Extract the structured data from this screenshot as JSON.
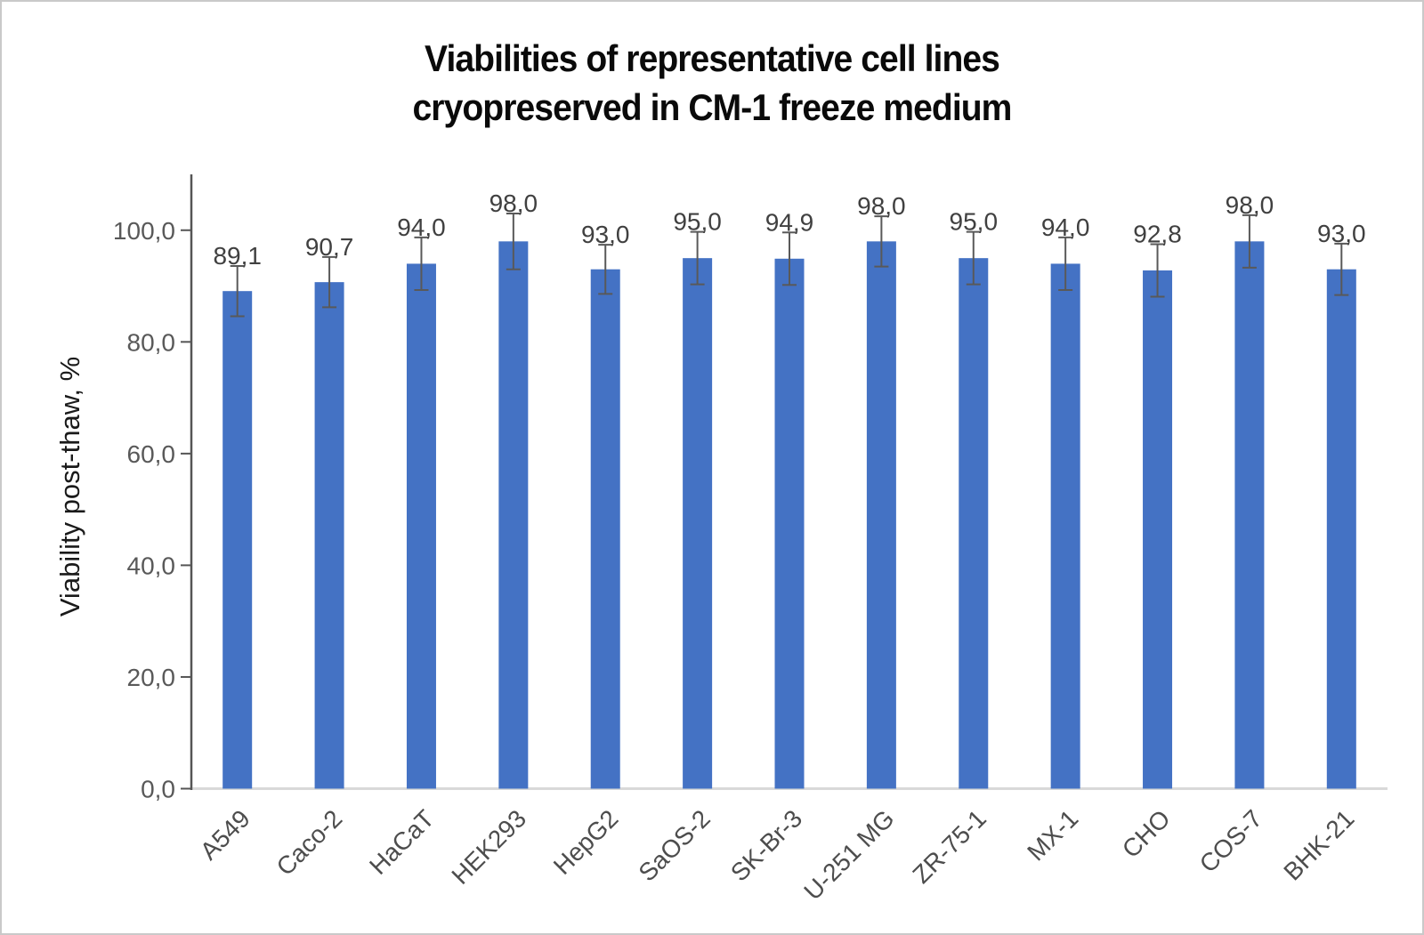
{
  "title": {
    "line1": "Viabilities of representative cell lines",
    "line2": "cryopreserved in CM-1 freeze medium"
  },
  "y_axis": {
    "title": "Viability post-thaw, %",
    "tick_labels": [
      "0,0",
      "20,0",
      "40,0",
      "60,0",
      "80,0",
      "100,0"
    ]
  },
  "chart_data": {
    "type": "bar",
    "title": "Viabilities of representative cell lines cryopreserved in CM-1 freeze medium",
    "categories": [
      "A549",
      "Caco-2",
      "HaCaT",
      "HEK293",
      "HepG2",
      "SaOS-2",
      "SK-Br-3",
      "U-251 MG",
      "ZR-75-1",
      "MX-1",
      "CHO",
      "COS-7",
      "BHK-21"
    ],
    "values": [
      89.1,
      90.7,
      94.0,
      98.0,
      93.0,
      95.0,
      94.9,
      98.0,
      95.0,
      94.0,
      92.8,
      98.0,
      93.0
    ],
    "error_bars": [
      4.5,
      4.5,
      4.7,
      5.0,
      4.4,
      4.7,
      4.7,
      4.5,
      4.7,
      4.7,
      4.7,
      4.7,
      4.6
    ],
    "data_labels": [
      "89,1",
      "90,7",
      "94,0",
      "98,0",
      "93,0",
      "95,0",
      "94,9",
      "98,0",
      "95,0",
      "94,0",
      "92,8",
      "98,0",
      "93,0"
    ],
    "xlabel": "",
    "ylabel": "Viability post-thaw, %",
    "ylim": [
      0,
      110
    ],
    "yticks": [
      0,
      20,
      40,
      60,
      80,
      100
    ],
    "grid": false,
    "legend": false,
    "x_label_rotation_deg": -45
  },
  "colors": {
    "bar": "#4472C4",
    "error_bar": "#595959",
    "axis_line": "#555555",
    "baseline": "#d9d9d9",
    "tick_label": "#595959",
    "data_label": "#404040",
    "category_label": "#4d4d4d",
    "title": "#0a0a0a",
    "ytitle": "#1a1a1a",
    "frame_border": "#c9c9c9"
  }
}
